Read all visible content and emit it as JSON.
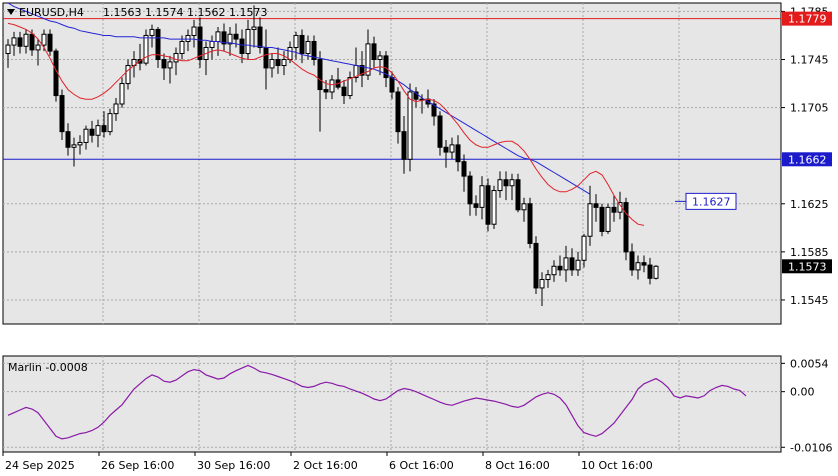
{
  "header": {
    "symbol": "EURUSD,H4",
    "ohlc": "1.1563 1.1574 1.1562 1.1573"
  },
  "colors": {
    "background": "#ffffff",
    "panel_bg": "#e6e6e6",
    "grid": "#a8a8a8",
    "frame": "#000000",
    "bull_fill": "#ffffff",
    "bear_fill": "#000000",
    "candle_border": "#000000",
    "ma_fast": "#e0222b",
    "ma_slow": "#2424d4",
    "level_red": "#e31b1b",
    "level_blue": "#1b1bcc",
    "oscillator": "#8a1aa8"
  },
  "chart_data": [
    {
      "type": "candlestick",
      "title": "EURUSD,H4",
      "ylim": [
        1.1525,
        1.1792
      ],
      "y_ticks": [
        "1.1785",
        "1.1745",
        "1.1705",
        "1.1625",
        "1.1585",
        "1.1545"
      ],
      "x_ticks": [
        "24 Sep 2025",
        "26 Sep 16:00",
        "30 Sep 16:00",
        "2 Oct 16:00",
        "6 Oct 16:00",
        "8 Oct 16:00",
        "10 Oct 16:00"
      ],
      "grid": true,
      "candles": [
        [
          1.175,
          1.1762,
          1.1738,
          1.1757
        ],
        [
          1.1757,
          1.1768,
          1.1748,
          1.1763
        ],
        [
          1.1763,
          1.1768,
          1.175,
          1.1756
        ],
        [
          1.1756,
          1.177,
          1.175,
          1.1766
        ],
        [
          1.1766,
          1.177,
          1.1748,
          1.1753
        ],
        [
          1.1753,
          1.1762,
          1.174,
          1.1757
        ],
        [
          1.1757,
          1.177,
          1.1752,
          1.1766
        ],
        [
          1.1766,
          1.177,
          1.1748,
          1.1752
        ],
        [
          1.1752,
          1.1754,
          1.171,
          1.1715
        ],
        [
          1.1715,
          1.172,
          1.1678,
          1.1685
        ],
        [
          1.1685,
          1.1692,
          1.1665,
          1.1672
        ],
        [
          1.1672,
          1.168,
          1.1656,
          1.1674
        ],
        [
          1.1674,
          1.1682,
          1.1666,
          1.1676
        ],
        [
          1.1676,
          1.169,
          1.167,
          1.1687
        ],
        [
          1.1687,
          1.1694,
          1.1676,
          1.1682
        ],
        [
          1.1682,
          1.1695,
          1.1672,
          1.169
        ],
        [
          1.169,
          1.1702,
          1.168,
          1.1685
        ],
        [
          1.1685,
          1.1704,
          1.1682,
          1.17
        ],
        [
          1.17,
          1.1713,
          1.1694,
          1.1708
        ],
        [
          1.1708,
          1.173,
          1.1705,
          1.1725
        ],
        [
          1.1725,
          1.1745,
          1.172,
          1.174
        ],
        [
          1.174,
          1.1752,
          1.173,
          1.1745
        ],
        [
          1.1745,
          1.1758,
          1.1736,
          1.1742
        ],
        [
          1.1742,
          1.177,
          1.174,
          1.1765
        ],
        [
          1.1765,
          1.1774,
          1.1755,
          1.177
        ],
        [
          1.177,
          1.1772,
          1.1738,
          1.1745
        ],
        [
          1.1745,
          1.175,
          1.1728,
          1.1738
        ],
        [
          1.1738,
          1.1748,
          1.1725,
          1.1743
        ],
        [
          1.1743,
          1.1755,
          1.1732,
          1.175
        ],
        [
          1.175,
          1.1765,
          1.1745,
          1.176
        ],
        [
          1.176,
          1.177,
          1.1752,
          1.1765
        ],
        [
          1.1765,
          1.1778,
          1.1755,
          1.1772
        ],
        [
          1.1772,
          1.178,
          1.1738,
          1.1745
        ],
        [
          1.1745,
          1.176,
          1.1732,
          1.1755
        ],
        [
          1.1755,
          1.1765,
          1.1745,
          1.176
        ],
        [
          1.176,
          1.1772,
          1.1748,
          1.1768
        ],
        [
          1.1768,
          1.1775,
          1.1752,
          1.1758
        ],
        [
          1.1758,
          1.1772,
          1.1748,
          1.1766
        ],
        [
          1.1766,
          1.1775,
          1.1755,
          1.1762
        ],
        [
          1.1762,
          1.177,
          1.1742,
          1.175
        ],
        [
          1.175,
          1.1778,
          1.1745,
          1.177
        ],
        [
          1.177,
          1.179,
          1.1755,
          1.1772
        ],
        [
          1.1772,
          1.178,
          1.175,
          1.1755
        ],
        [
          1.1755,
          1.177,
          1.172,
          1.1738
        ],
        [
          1.1738,
          1.175,
          1.173,
          1.1745
        ],
        [
          1.1745,
          1.1755,
          1.1733,
          1.174
        ],
        [
          1.174,
          1.1752,
          1.1732,
          1.1745
        ],
        [
          1.1745,
          1.176,
          1.1742,
          1.1755
        ],
        [
          1.1755,
          1.1768,
          1.1745,
          1.1765
        ],
        [
          1.1765,
          1.177,
          1.1742,
          1.175
        ],
        [
          1.175,
          1.1765,
          1.1745,
          1.176
        ],
        [
          1.176,
          1.1765,
          1.174,
          1.1745
        ],
        [
          1.1745,
          1.1752,
          1.1685,
          1.172
        ],
        [
          1.172,
          1.1728,
          1.1712,
          1.1718
        ],
        [
          1.1718,
          1.1732,
          1.1712,
          1.1728
        ],
        [
          1.1728,
          1.1738,
          1.172,
          1.1722
        ],
        [
          1.1722,
          1.1728,
          1.1708,
          1.1715
        ],
        [
          1.1715,
          1.1735,
          1.1712,
          1.173
        ],
        [
          1.173,
          1.1755,
          1.1726,
          1.174
        ],
        [
          1.174,
          1.1752,
          1.1722,
          1.1732
        ],
        [
          1.1732,
          1.177,
          1.1728,
          1.1758
        ],
        [
          1.1758,
          1.1764,
          1.1738,
          1.1745
        ],
        [
          1.1745,
          1.1752,
          1.1732,
          1.1748
        ],
        [
          1.1748,
          1.1752,
          1.1722,
          1.173
        ],
        [
          1.173,
          1.1735,
          1.1712,
          1.1718
        ],
        [
          1.1718,
          1.1722,
          1.1675,
          1.1685
        ],
        [
          1.1685,
          1.1698,
          1.165,
          1.1662
        ],
        [
          1.1662,
          1.1725,
          1.1652,
          1.1718
        ],
        [
          1.1718,
          1.1722,
          1.1705,
          1.1712
        ],
        [
          1.1712,
          1.1716,
          1.17,
          1.1712
        ],
        [
          1.1712,
          1.172,
          1.1705,
          1.1708
        ],
        [
          1.1708,
          1.1712,
          1.169,
          1.1698
        ],
        [
          1.1698,
          1.1702,
          1.1665,
          1.1672
        ],
        [
          1.1672,
          1.1678,
          1.1655,
          1.1668
        ],
        [
          1.1668,
          1.168,
          1.1662,
          1.1674
        ],
        [
          1.1674,
          1.1682,
          1.1652,
          1.166
        ],
        [
          1.166,
          1.1666,
          1.1635,
          1.1648
        ],
        [
          1.1648,
          1.1652,
          1.1615,
          1.1625
        ],
        [
          1.1625,
          1.1632,
          1.1615,
          1.1622
        ],
        [
          1.1622,
          1.1648,
          1.1612,
          1.164
        ],
        [
          1.164,
          1.1646,
          1.1602,
          1.1608
        ],
        [
          1.1608,
          1.164,
          1.1604,
          1.1636
        ],
        [
          1.1636,
          1.1652,
          1.163,
          1.1645
        ],
        [
          1.1645,
          1.1652,
          1.1628,
          1.164
        ],
        [
          1.164,
          1.165,
          1.1628,
          1.1645
        ],
        [
          1.1645,
          1.165,
          1.1618,
          1.162
        ],
        [
          1.162,
          1.163,
          1.161,
          1.1625
        ],
        [
          1.1625,
          1.163,
          1.1588,
          1.1592
        ],
        [
          1.1592,
          1.1598,
          1.155,
          1.1555
        ],
        [
          1.1555,
          1.1568,
          1.154,
          1.1562
        ],
        [
          1.1562,
          1.157,
          1.1555,
          1.1566
        ],
        [
          1.1566,
          1.1578,
          1.156,
          1.1573
        ],
        [
          1.1573,
          1.1582,
          1.1565,
          1.157
        ],
        [
          1.157,
          1.159,
          1.156,
          1.158
        ],
        [
          1.158,
          1.1588,
          1.1565,
          1.157
        ],
        [
          1.157,
          1.1585,
          1.1565,
          1.1578
        ],
        [
          1.1578,
          1.16,
          1.1572,
          1.1598
        ],
        [
          1.1598,
          1.164,
          1.159,
          1.1625
        ],
        [
          1.1625,
          1.1633,
          1.161,
          1.1622
        ],
        [
          1.1622,
          1.1625,
          1.1598,
          1.1602
        ],
        [
          1.1602,
          1.1625,
          1.16,
          1.1622
        ],
        [
          1.1622,
          1.1632,
          1.161,
          1.1618
        ],
        [
          1.1618,
          1.1635,
          1.1612,
          1.1626
        ],
        [
          1.1626,
          1.163,
          1.1578,
          1.1585
        ],
        [
          1.1585,
          1.1592,
          1.1565,
          1.157
        ],
        [
          1.157,
          1.1582,
          1.1562,
          1.1576
        ],
        [
          1.1576,
          1.1582,
          1.1568,
          1.1574
        ],
        [
          1.1574,
          1.158,
          1.1558,
          1.1563
        ],
        [
          1.1563,
          1.1574,
          1.1562,
          1.1573
        ]
      ],
      "ma_fast": [
        1.1775,
        1.1774,
        1.1772,
        1.177,
        1.1767,
        1.1762,
        1.1755,
        1.1746,
        1.1736,
        1.1727,
        1.172,
        1.1716,
        1.1713,
        1.1712,
        1.1712,
        1.1714,
        1.1717,
        1.1721,
        1.1726,
        1.1731,
        1.1736,
        1.174,
        1.1744,
        1.1747,
        1.1749,
        1.1749,
        1.1748,
        1.1747,
        1.1745,
        1.1744,
        1.1744,
        1.1746,
        1.1748,
        1.175,
        1.1752,
        1.1753,
        1.1752,
        1.175,
        1.1748,
        1.1746,
        1.1745,
        1.1745,
        1.1747,
        1.1749,
        1.175,
        1.175,
        1.1748,
        1.1745,
        1.1741,
        1.1737,
        1.1734,
        1.1732,
        1.1728,
        1.1725,
        1.1724,
        1.1725,
        1.1727,
        1.1729,
        1.1731,
        1.1733,
        1.1735,
        1.1738,
        1.1739,
        1.1738,
        1.1734,
        1.1727,
        1.1719,
        1.1712,
        1.171,
        1.1711,
        1.1712,
        1.1711,
        1.1708,
        1.1703,
        1.1697,
        1.1691,
        1.1684,
        1.1678,
        1.1674,
        1.1672,
        1.1672,
        1.1674,
        1.1676,
        1.1677,
        1.1677,
        1.1674,
        1.1669,
        1.1662,
        1.1654,
        1.1647,
        1.1641,
        1.1637,
        1.1635,
        1.1635,
        1.1637,
        1.164,
        1.1645,
        1.165,
        1.1652,
        1.1649,
        1.1641,
        1.1632,
        1.1624,
        1.1617,
        1.1612,
        1.1608,
        1.1607
      ],
      "ma_slow": [
        1.1792,
        1.1789,
        1.1787,
        1.1785,
        1.1783,
        1.1781,
        1.1779,
        1.1777,
        1.1776,
        1.1774,
        1.1772,
        1.1771,
        1.1769,
        1.1768,
        1.1767,
        1.1766,
        1.1765,
        1.1765,
        1.1764,
        1.1764,
        1.1764,
        1.1764,
        1.1763,
        1.1763,
        1.1763,
        1.1763,
        1.1763,
        1.1762,
        1.1762,
        1.1762,
        1.1762,
        1.1762,
        1.1761,
        1.1761,
        1.176,
        1.176,
        1.1759,
        1.1759,
        1.1758,
        1.1757,
        1.1757,
        1.1756,
        1.1756,
        1.1755,
        1.1755,
        1.1754,
        1.1753,
        1.1752,
        1.1751,
        1.1749,
        1.1748,
        1.1747,
        1.1746,
        1.1745,
        1.1744,
        1.1743,
        1.1742,
        1.1741,
        1.174,
        1.1739,
        1.1738,
        1.1737,
        1.1735,
        1.1733,
        1.173,
        1.1727,
        1.1724,
        1.172,
        1.1717,
        1.1713,
        1.171,
        1.1707,
        1.1704,
        1.1701,
        1.1698,
        1.1695,
        1.1692,
        1.1689,
        1.1686,
        1.1683,
        1.168,
        1.1677,
        1.1674,
        1.1671,
        1.1668,
        1.1665,
        1.1663,
        1.1662,
        1.166,
        1.1657,
        1.1654,
        1.1651,
        1.1648,
        1.1645,
        1.1642,
        1.1639,
        1.1636,
        1.1633
      ],
      "levels": [
        {
          "value": 1.1779,
          "label": "1.1779",
          "color": "#e31b1b",
          "label_style": "filled"
        },
        {
          "value": 1.1662,
          "label": "1.1662",
          "color": "#1b1bcc",
          "label_style": "filled"
        },
        {
          "value": 1.1627,
          "label": "1.1627",
          "color": "#1b1bcc",
          "label_style": "boxed"
        }
      ],
      "current_price": {
        "value": 1.1573,
        "label": "1.1573"
      }
    },
    {
      "type": "line",
      "title": "Marlin -0.0008",
      "ylim": [
        -0.0115,
        0.0068
      ],
      "y_ticks": [
        "0.0054",
        "0.00",
        "-0.0106"
      ],
      "grid": true,
      "values": [
        -0.0045,
        -0.004,
        -0.0035,
        -0.003,
        -0.0033,
        -0.004,
        -0.0055,
        -0.007,
        -0.0085,
        -0.009,
        -0.0088,
        -0.0084,
        -0.008,
        -0.0078,
        -0.0074,
        -0.0068,
        -0.0058,
        -0.0045,
        -0.0035,
        -0.0025,
        -0.001,
        0.0005,
        0.0015,
        0.0025,
        0.0032,
        0.0028,
        0.002,
        0.0018,
        0.0022,
        0.003,
        0.0038,
        0.0042,
        0.004,
        0.0032,
        0.0028,
        0.0024,
        0.0026,
        0.0034,
        0.004,
        0.0045,
        0.005,
        0.0045,
        0.0038,
        0.0036,
        0.0033,
        0.0029,
        0.0025,
        0.0021,
        0.0016,
        0.001,
        0.0008,
        0.001,
        0.0015,
        0.0018,
        0.0016,
        0.0012,
        0.001,
        0.0005,
        0.0001,
        -0.0003,
        -0.0008,
        -0.0014,
        -0.0017,
        -0.0014,
        -0.0006,
        0.0002,
        0.0006,
        0.0004,
        0.0,
        -0.0005,
        -0.001,
        -0.0015,
        -0.002,
        -0.0024,
        -0.0026,
        -0.0022,
        -0.0018,
        -0.0015,
        -0.0012,
        -0.0014,
        -0.0016,
        -0.0018,
        -0.0021,
        -0.0024,
        -0.0028,
        -0.003,
        -0.0026,
        -0.0018,
        -0.001,
        -0.0005,
        -0.0002,
        -0.0005,
        -0.0012,
        -0.0025,
        -0.0045,
        -0.0065,
        -0.0078,
        -0.0082,
        -0.0085,
        -0.008,
        -0.007,
        -0.006,
        -0.0045,
        -0.003,
        -0.0015,
        0.0005,
        0.0015,
        0.002,
        0.0025,
        0.0018,
        0.0008,
        -0.0008,
        -0.0012,
        -0.0008,
        -0.001,
        -0.0012,
        -0.0008,
        0.0002,
        0.0008,
        0.0012,
        0.001,
        0.0005,
        0.0002,
        -0.0008
      ]
    }
  ]
}
